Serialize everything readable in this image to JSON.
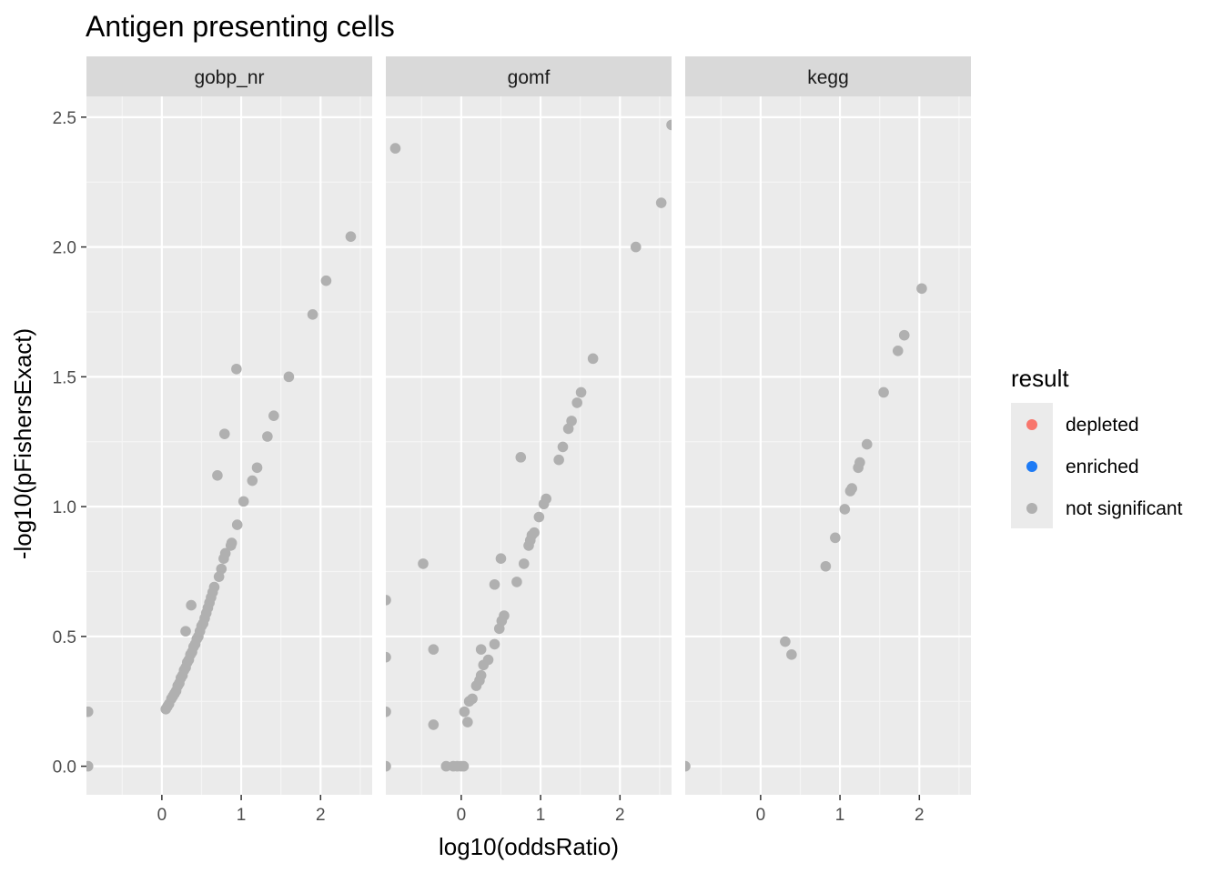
{
  "chart_data": {
    "type": "scatter",
    "title": "Antigen presenting cells",
    "xlabel": "log10(oddsRatio)",
    "ylabel": "-log10(pFishersExact)",
    "xlim": [
      -0.95,
      2.65
    ],
    "ylim": [
      -0.11,
      2.58
    ],
    "x_ticks": [
      0,
      1,
      2
    ],
    "y_ticks": [
      0.0,
      0.5,
      1.0,
      1.5,
      2.0,
      2.5
    ],
    "y_tick_labels": [
      "0.0",
      "0.5",
      "1.0",
      "1.5",
      "2.0",
      "2.5"
    ],
    "grid": true,
    "legend": {
      "title": "result",
      "placement": "right",
      "entries": [
        {
          "label": "depleted",
          "color": "#F8766D"
        },
        {
          "label": "enriched",
          "color": "#1E7BF5"
        },
        {
          "label": "not significant",
          "color": "#B0B0B0"
        }
      ]
    },
    "facets": [
      {
        "name": "gobp_nr",
        "points": [
          [
            -0.93,
            0.21
          ],
          [
            -0.93,
            0.0
          ],
          [
            0.05,
            0.22
          ],
          [
            0.07,
            0.23
          ],
          [
            0.09,
            0.24
          ],
          [
            0.12,
            0.26
          ],
          [
            0.14,
            0.27
          ],
          [
            0.16,
            0.28
          ],
          [
            0.18,
            0.29
          ],
          [
            0.2,
            0.31
          ],
          [
            0.22,
            0.32
          ],
          [
            0.24,
            0.34
          ],
          [
            0.26,
            0.35
          ],
          [
            0.28,
            0.37
          ],
          [
            0.3,
            0.38
          ],
          [
            0.32,
            0.4
          ],
          [
            0.34,
            0.41
          ],
          [
            0.36,
            0.43
          ],
          [
            0.38,
            0.44
          ],
          [
            0.4,
            0.46
          ],
          [
            0.42,
            0.47
          ],
          [
            0.44,
            0.49
          ],
          [
            0.46,
            0.5
          ],
          [
            0.48,
            0.52
          ],
          [
            0.5,
            0.54
          ],
          [
            0.52,
            0.55
          ],
          [
            0.54,
            0.57
          ],
          [
            0.56,
            0.59
          ],
          [
            0.58,
            0.61
          ],
          [
            0.6,
            0.63
          ],
          [
            0.62,
            0.65
          ],
          [
            0.64,
            0.67
          ],
          [
            0.66,
            0.69
          ],
          [
            0.72,
            0.73
          ],
          [
            0.75,
            0.76
          ],
          [
            0.78,
            0.8
          ],
          [
            0.8,
            0.82
          ],
          [
            0.87,
            0.85
          ],
          [
            0.88,
            0.86
          ],
          [
            0.95,
            0.93
          ],
          [
            0.3,
            0.52
          ],
          [
            0.37,
            0.62
          ],
          [
            0.7,
            1.12
          ],
          [
            0.79,
            1.28
          ],
          [
            0.94,
            1.53
          ],
          [
            1.03,
            1.02
          ],
          [
            1.14,
            1.1
          ],
          [
            1.2,
            1.15
          ],
          [
            1.33,
            1.27
          ],
          [
            1.41,
            1.35
          ],
          [
            1.6,
            1.5
          ],
          [
            1.9,
            1.74
          ],
          [
            2.07,
            1.87
          ],
          [
            2.38,
            2.04
          ]
        ]
      },
      {
        "name": "gomf",
        "points": [
          [
            -0.83,
            2.38
          ],
          [
            -0.95,
            0.64
          ],
          [
            -0.95,
            0.42
          ],
          [
            -0.95,
            0.21
          ],
          [
            -0.95,
            0.0
          ],
          [
            -0.48,
            0.78
          ],
          [
            -0.35,
            0.45
          ],
          [
            -0.35,
            0.16
          ],
          [
            -0.19,
            0.0
          ],
          [
            -0.1,
            0.0
          ],
          [
            -0.05,
            0.0
          ],
          [
            0.0,
            0.0
          ],
          [
            0.03,
            0.0
          ],
          [
            0.04,
            0.21
          ],
          [
            0.08,
            0.17
          ],
          [
            0.1,
            0.25
          ],
          [
            0.14,
            0.26
          ],
          [
            0.19,
            0.31
          ],
          [
            0.23,
            0.33
          ],
          [
            0.25,
            0.35
          ],
          [
            0.25,
            0.45
          ],
          [
            0.28,
            0.39
          ],
          [
            0.34,
            0.41
          ],
          [
            0.42,
            0.47
          ],
          [
            0.48,
            0.53
          ],
          [
            0.51,
            0.56
          ],
          [
            0.54,
            0.58
          ],
          [
            0.42,
            0.7
          ],
          [
            0.5,
            0.8
          ],
          [
            0.7,
            0.71
          ],
          [
            0.79,
            0.78
          ],
          [
            0.85,
            0.85
          ],
          [
            0.87,
            0.87
          ],
          [
            0.89,
            0.89
          ],
          [
            0.92,
            0.9
          ],
          [
            0.98,
            0.96
          ],
          [
            1.04,
            1.01
          ],
          [
            1.07,
            1.03
          ],
          [
            0.75,
            1.19
          ],
          [
            1.23,
            1.18
          ],
          [
            1.28,
            1.23
          ],
          [
            1.35,
            1.3
          ],
          [
            1.39,
            1.33
          ],
          [
            1.46,
            1.4
          ],
          [
            1.51,
            1.44
          ],
          [
            1.66,
            1.57
          ],
          [
            2.2,
            2.0
          ],
          [
            2.52,
            2.17
          ],
          [
            2.65,
            2.47
          ]
        ]
      },
      {
        "name": "kegg",
        "points": [
          [
            -0.95,
            0.0
          ],
          [
            0.31,
            0.48
          ],
          [
            0.39,
            0.43
          ],
          [
            0.82,
            0.77
          ],
          [
            0.94,
            0.88
          ],
          [
            1.06,
            0.99
          ],
          [
            1.13,
            1.06
          ],
          [
            1.15,
            1.07
          ],
          [
            1.23,
            1.15
          ],
          [
            1.25,
            1.17
          ],
          [
            1.34,
            1.24
          ],
          [
            1.55,
            1.44
          ],
          [
            1.73,
            1.6
          ],
          [
            1.81,
            1.66
          ],
          [
            2.03,
            1.84
          ]
        ]
      }
    ]
  }
}
